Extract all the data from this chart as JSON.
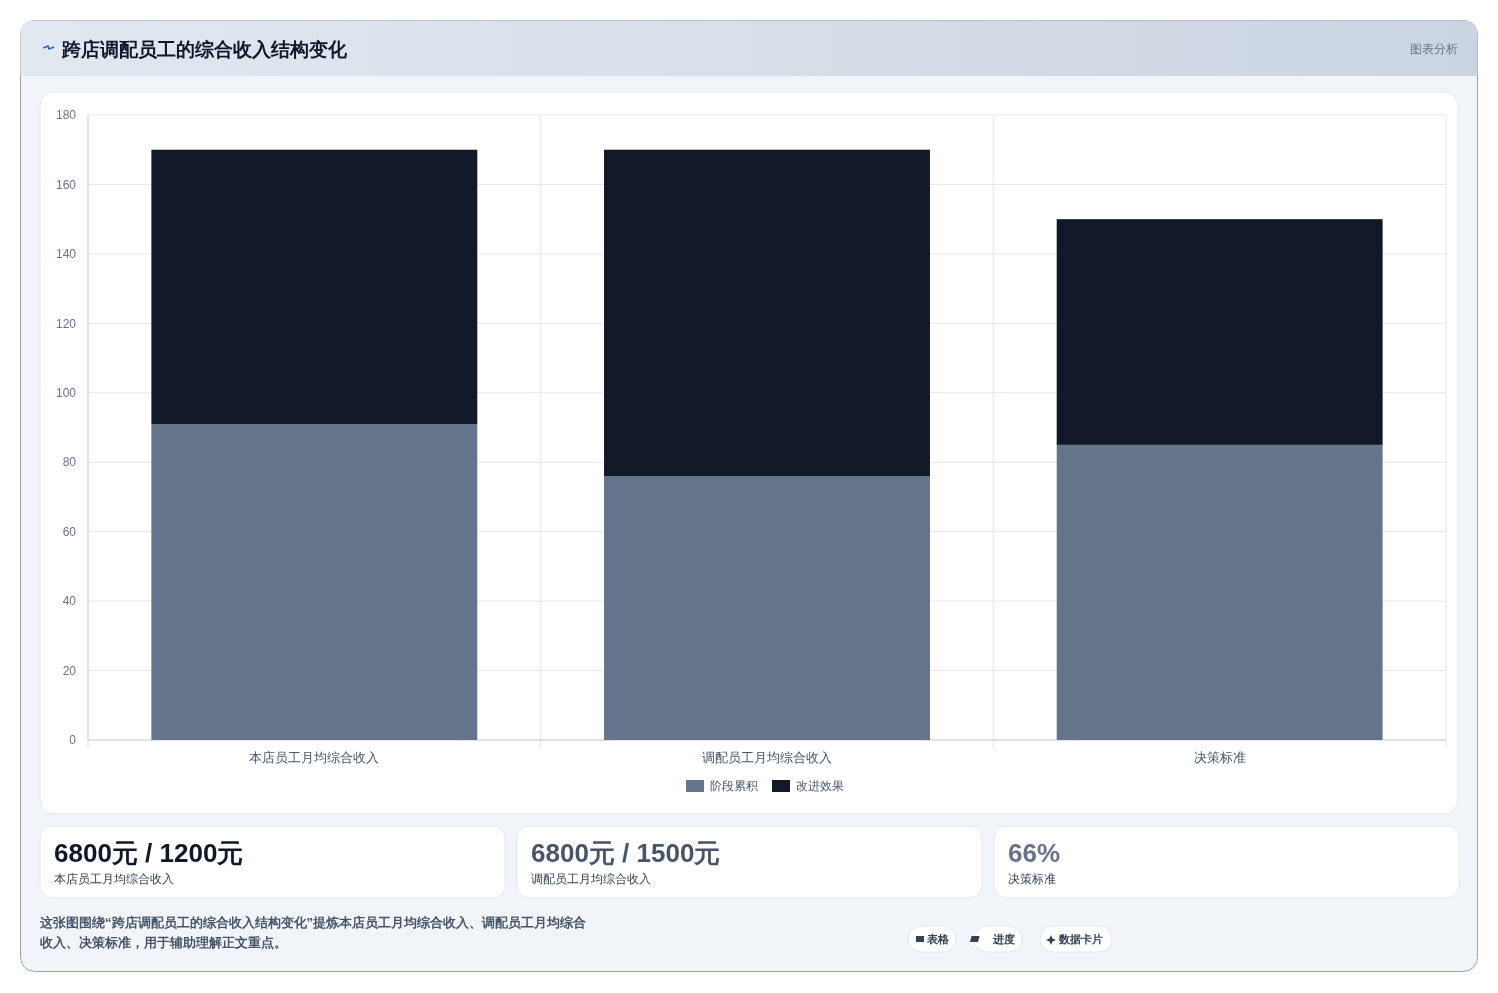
{
  "chart_data": {
    "type": "bar",
    "title": "跨店调配员工的综合收入结构变化",
    "stacked": true,
    "categories": [
      "本店员工月均综合收入",
      "调配员工月均综合收入",
      "决策标准"
    ],
    "series": [
      {
        "name": "阶段累积",
        "color": "#64748b",
        "values": [
          91,
          76,
          85
        ]
      },
      {
        "name": "改进效果",
        "color": "#111827",
        "values": [
          79,
          94,
          65
        ]
      }
    ],
    "ylim": [
      0,
      180
    ],
    "yticks": [
      0,
      20,
      40,
      60,
      80,
      100,
      120,
      140,
      160,
      180
    ],
    "grid": true,
    "legend": "bottom",
    "annotations": [
      "图表分析",
      "6800元 / 1200元",
      "本店员工月均综合收入",
      "6800元 / 1500元",
      "调配员工月均综合收入",
      "66%",
      "决策标准",
      "这张图围绕“跨店调配员工的综合收入结构变化”提炼本店员工月均综合收入、调配员工月均综合收入、决策标准，用于辅助理解正文重点。",
      "表格",
      "进度",
      "数据卡片"
    ]
  }
}
